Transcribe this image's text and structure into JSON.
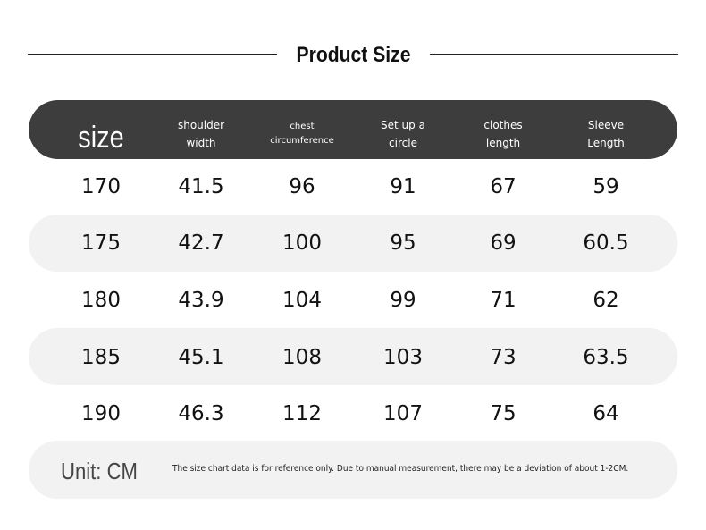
{
  "header": {
    "title": "Product Size"
  },
  "table": {
    "columns": [
      [
        "size"
      ],
      [
        "shoulder",
        "width"
      ],
      [
        "chest",
        "circumference"
      ],
      [
        "Set up a",
        "circle"
      ],
      [
        "clothes",
        "length"
      ],
      [
        "Sleeve",
        "Length"
      ]
    ],
    "rows": [
      [
        "170",
        "41.5",
        "96",
        "91",
        "67",
        "59"
      ],
      [
        "175",
        "42.7",
        "100",
        "95",
        "69",
        "60.5"
      ],
      [
        "180",
        "43.9",
        "104",
        "99",
        "71",
        "62"
      ],
      [
        "185",
        "45.1",
        "108",
        "103",
        "73",
        "63.5"
      ],
      [
        "190",
        "46.3",
        "112",
        "107",
        "75",
        "64"
      ]
    ]
  },
  "footer": {
    "unit": "Unit: CM",
    "note": "The size chart data is for reference only. Due to manual measurement, there may be a deviation of about 1-2CM."
  }
}
